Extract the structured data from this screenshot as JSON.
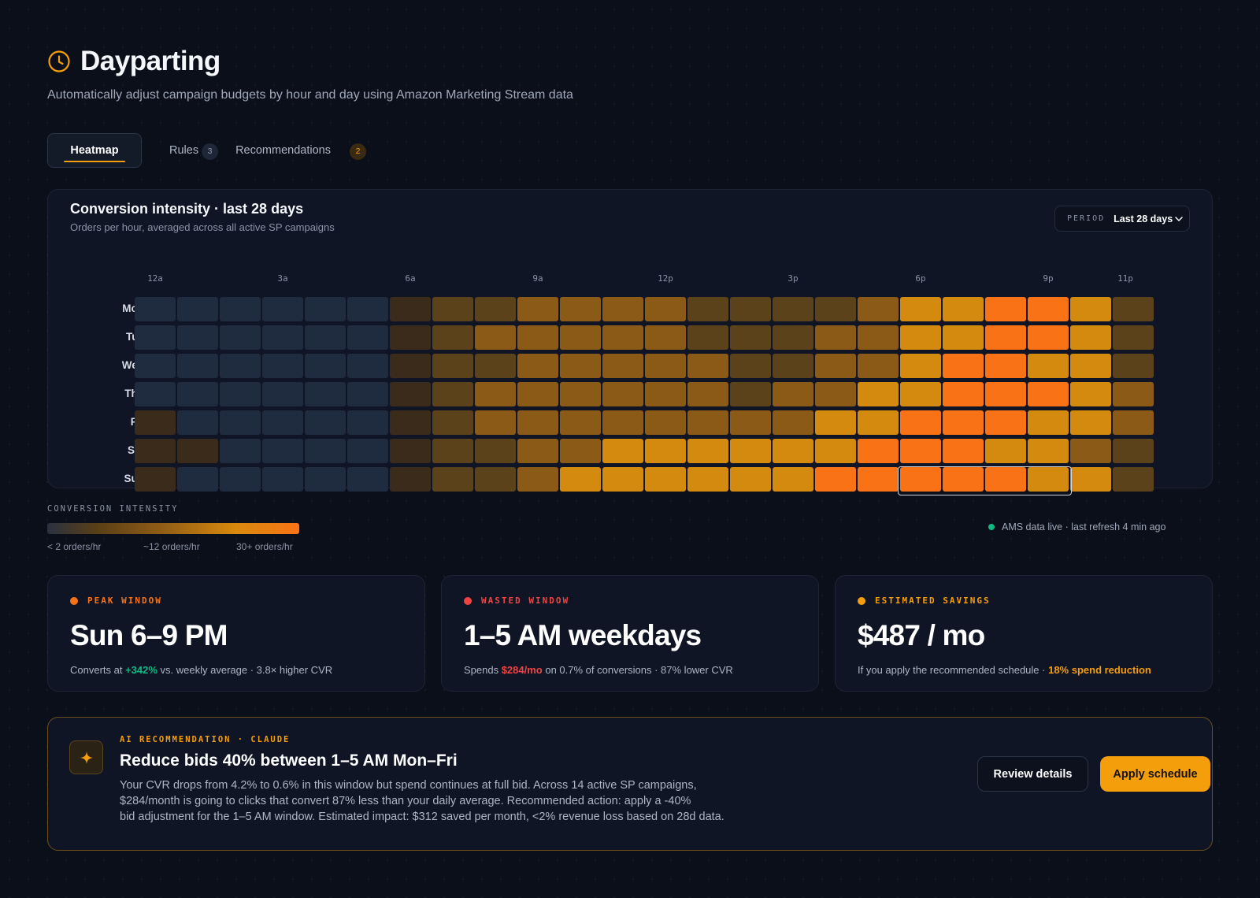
{
  "header": {
    "title": "Dayparting",
    "subtitle": "Automatically adjust campaign budgets by hour and day using Amazon Marketing Stream data"
  },
  "tabs": [
    {
      "label": "Heatmap",
      "active": true
    },
    {
      "label": "Rules",
      "count": "3"
    },
    {
      "label": "Recommendations",
      "count": "2"
    }
  ],
  "heatmap": {
    "title": "Conversion intensity · last 28 days",
    "subtitle": "Orders per hour, averaged across all active SP campaigns",
    "period": {
      "label": "PERIOD",
      "value": "Last 28 days"
    },
    "hour_labels": [
      "12a",
      "3a",
      "6a",
      "9a",
      "12p",
      "3p",
      "6p",
      "9p",
      "11p"
    ],
    "days": [
      "Mon",
      "Tue",
      "Wed",
      "Thu",
      "Fri",
      "Sat",
      "Sun"
    ],
    "intensity_colors": [
      "#1f2b3e",
      "#3b2b1a",
      "#5c421a",
      "#8c5a17",
      "#d48a0f",
      "#f97316"
    ],
    "intensity_levels": [
      [
        0,
        0,
        0,
        0,
        0,
        0,
        1,
        2,
        2,
        3,
        3,
        3,
        3,
        2,
        2,
        2,
        2,
        3,
        4,
        4,
        5,
        5,
        4,
        2
      ],
      [
        0,
        0,
        0,
        0,
        0,
        0,
        1,
        2,
        3,
        3,
        3,
        3,
        3,
        2,
        2,
        2,
        3,
        3,
        4,
        4,
        5,
        5,
        4,
        2
      ],
      [
        0,
        0,
        0,
        0,
        0,
        0,
        1,
        2,
        2,
        3,
        3,
        3,
        3,
        3,
        2,
        2,
        3,
        3,
        4,
        5,
        5,
        4,
        4,
        2
      ],
      [
        0,
        0,
        0,
        0,
        0,
        0,
        1,
        2,
        3,
        3,
        3,
        3,
        3,
        3,
        2,
        3,
        3,
        4,
        4,
        5,
        5,
        5,
        4,
        3
      ],
      [
        1,
        0,
        0,
        0,
        0,
        0,
        1,
        2,
        3,
        3,
        3,
        3,
        3,
        3,
        3,
        3,
        4,
        4,
        5,
        5,
        5,
        4,
        4,
        3
      ],
      [
        1,
        1,
        0,
        0,
        0,
        0,
        1,
        2,
        2,
        3,
        3,
        4,
        4,
        4,
        4,
        4,
        4,
        5,
        5,
        5,
        4,
        4,
        3,
        2
      ],
      [
        1,
        0,
        0,
        0,
        0,
        0,
        1,
        2,
        2,
        3,
        4,
        4,
        4,
        4,
        4,
        4,
        5,
        5,
        5,
        5,
        5,
        4,
        4,
        2
      ]
    ],
    "highlight": {
      "day": "Sun",
      "start_hour": 18,
      "end_hour": 22
    }
  },
  "legend": {
    "title": "CONVERSION INTENSITY",
    "labels": [
      "< 2 orders/hr",
      "~12 orders/hr",
      "30+ orders/hr"
    ]
  },
  "status": {
    "text": "AMS data live · last refresh 4 min ago",
    "color": "#10b981"
  },
  "stats": [
    {
      "label": "PEAK WINDOW",
      "color": "#f97316",
      "value": "Sun 6–9 PM",
      "detail_pre": "Converts at ",
      "detail_em": "+342%",
      "detail_post": " vs. weekly average · 3.8× higher CVR",
      "em_color": "#10b981"
    },
    {
      "label": "WASTED WINDOW",
      "color": "#ef4444",
      "value": "1–5 AM weekdays",
      "detail_pre": "Spends ",
      "detail_em": "$284/mo",
      "detail_post": " on 0.7% of conversions · 87% lower CVR",
      "em_color": "#ef4444"
    },
    {
      "label": "ESTIMATED SAVINGS",
      "color": "#f59e0b",
      "value": "$487 / mo",
      "detail_pre": "If you apply the recommended schedule · ",
      "detail_em": "18% spend reduction",
      "detail_post": "",
      "em_color": "#f59e0b"
    }
  ],
  "recommendation": {
    "kicker": "AI RECOMMENDATION · CLAUDE",
    "title": "Reduce bids 40% between 1–5 AM Mon–Fri",
    "body_lines": [
      "Your CVR drops from 4.2% to 0.6% in this window but spend continues at full bid. Across 14 active SP campaigns,",
      "$284/month is going to clicks that convert 87% less than your daily average. Recommended action: apply a -40%",
      "bid adjustment for the 1–5 AM window. Estimated impact: $312 saved per month, <2% revenue loss based on 28d data."
    ],
    "review_label": "Review details",
    "apply_label": "Apply schedule"
  }
}
